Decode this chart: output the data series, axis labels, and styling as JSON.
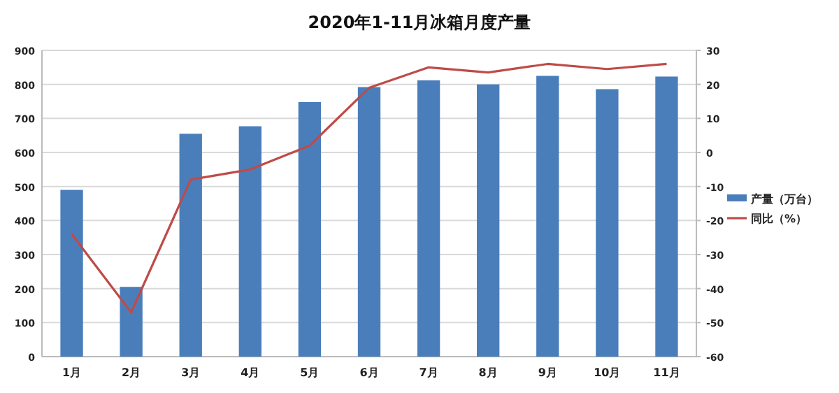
{
  "chart_data": {
    "type": "bar",
    "title": "2020年1-11月冰箱月度产量",
    "categories": [
      "1月",
      "2月",
      "3月",
      "4月",
      "5月",
      "6月",
      "7月",
      "8月",
      "9月",
      "10月",
      "11月"
    ],
    "series": [
      {
        "name": "产量（万台）",
        "color": "#4a7ebb",
        "values": [
          490,
          205,
          655,
          677,
          748,
          792,
          812,
          800,
          825,
          786,
          823
        ]
      },
      {
        "name": "同比（%）",
        "type": "line",
        "axis": "y2",
        "color": "#be4b48",
        "values": [
          -24,
          -47,
          -8,
          -5,
          2,
          19,
          25,
          23.5,
          26,
          24.5,
          26
        ]
      }
    ],
    "ylim": [
      0,
      900
    ],
    "yticks": [
      0,
      100,
      200,
      300,
      400,
      500,
      600,
      700,
      800,
      900
    ],
    "y2lim": [
      -60,
      30
    ],
    "y2ticks": [
      -60,
      -50,
      -40,
      -30,
      -20,
      -10,
      0,
      10,
      20,
      30
    ],
    "grid": "y",
    "legend": "right",
    "marker": "none",
    "line_style": "solid"
  }
}
